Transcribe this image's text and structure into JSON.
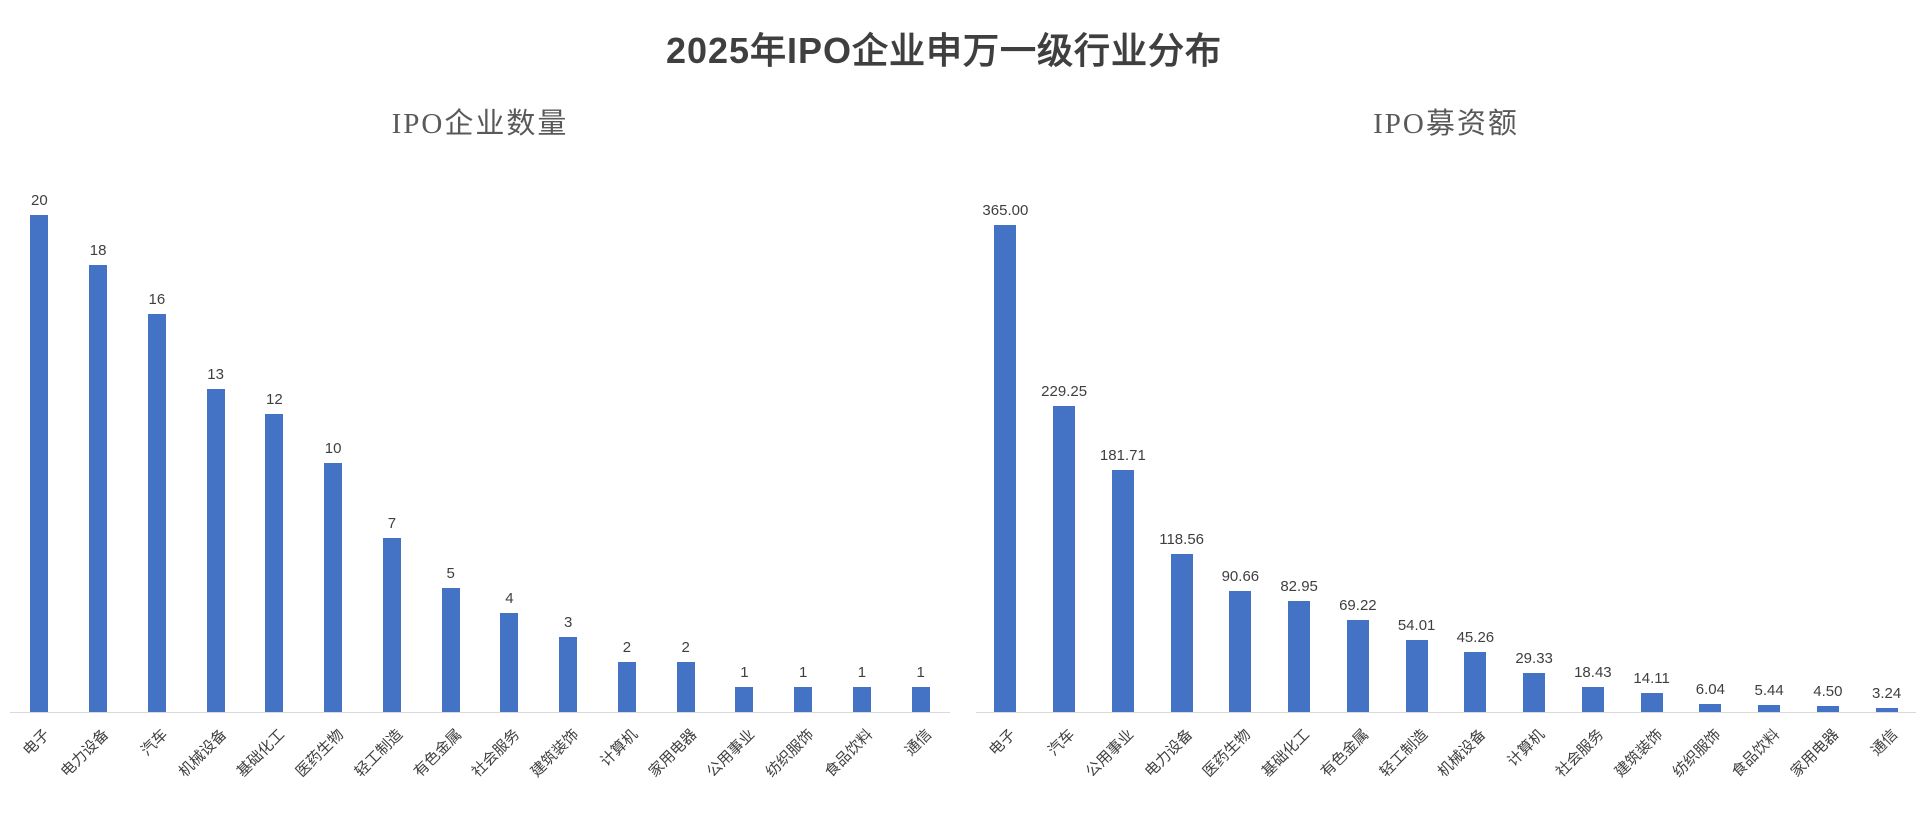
{
  "title": "2025年IPO企业申万一级行业分布",
  "colors": {
    "bar": "#4472C4",
    "title_text": "#3f3f3f",
    "subtitle_text": "#595959",
    "value_label_text": "#3f3f3f",
    "category_label_text": "#404040",
    "axis_line": "#d9d9d9"
  },
  "chart_data": [
    {
      "type": "bar",
      "title": "IPO企业数量",
      "categories": [
        "电子",
        "电力设备",
        "汽车",
        "机械设备",
        "基础化工",
        "医药生物",
        "轻工制造",
        "有色金属",
        "社会服务",
        "建筑装饰",
        "计算机",
        "家用电器",
        "公用事业",
        "纺织服饰",
        "食品饮料",
        "通信"
      ],
      "values": [
        20,
        18,
        16,
        13,
        12,
        10,
        7,
        5,
        4,
        3,
        2,
        2,
        1,
        1,
        1,
        1
      ],
      "labels": [
        "20",
        "18",
        "16",
        "13",
        "12",
        "10",
        "7",
        "5",
        "4",
        "3",
        "2",
        "2",
        "1",
        "1",
        "1",
        "1"
      ],
      "xlabel": "",
      "ylabel": "",
      "ylim": [
        0,
        20
      ],
      "grid": false,
      "legend": "none",
      "value_labels_position": "above-bars",
      "category_label_rotation": 45
    },
    {
      "type": "bar",
      "title": "IPO募资额",
      "categories": [
        "电子",
        "汽车",
        "公用事业",
        "电力设备",
        "医药生物",
        "基础化工",
        "有色金属",
        "轻工制造",
        "机械设备",
        "计算机",
        "社会服务",
        "建筑装饰",
        "纺织服饰",
        "食品饮料",
        "家用电器",
        "通信"
      ],
      "values": [
        365.0,
        229.25,
        181.71,
        118.56,
        90.66,
        82.95,
        69.22,
        54.01,
        45.26,
        29.33,
        18.43,
        14.11,
        6.04,
        5.44,
        4.5,
        3.24
      ],
      "labels": [
        "365.00",
        "229.25",
        "181.71",
        "118.56",
        "90.66",
        "82.95",
        "69.22",
        "54.01",
        "45.26",
        "29.33",
        "18.43",
        "14.11",
        "6.04",
        "5.44",
        "4.50",
        "3.24"
      ],
      "xlabel": "",
      "ylabel": "",
      "ylim": [
        0,
        365
      ],
      "grid": false,
      "legend": "none",
      "value_labels_position": "above-bars",
      "category_label_rotation": 45
    }
  ]
}
